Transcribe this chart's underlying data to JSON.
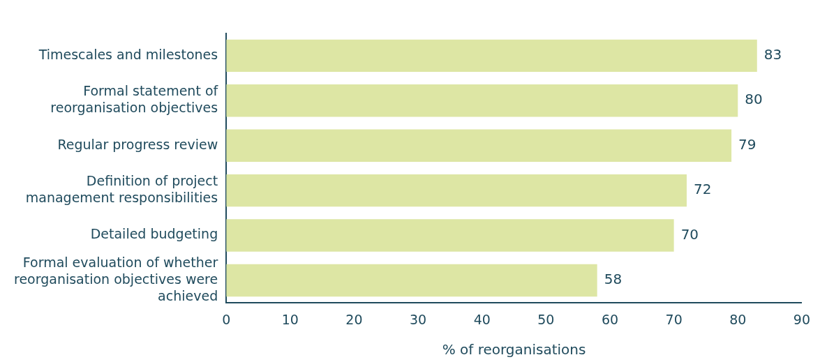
{
  "chart_data": {
    "type": "bar",
    "orientation": "horizontal",
    "xlabel": "% of reorganisations",
    "categories": [
      "Timescales and milestones",
      "Formal statement of reorganisation objectives",
      "Regular progress review",
      "Definition of project management responsibilities",
      "Detailed budgeting",
      "Formal evaluation of whether reorganisation objectives were achieved"
    ],
    "values": [
      83,
      80,
      79,
      72,
      70,
      58
    ],
    "color": "#dde6a4",
    "xlim": [
      0,
      90
    ],
    "xticks": [
      0,
      10,
      20,
      30,
      40,
      50,
      60,
      70,
      80,
      90
    ],
    "grid": false,
    "legend": false,
    "data_labels": true
  }
}
